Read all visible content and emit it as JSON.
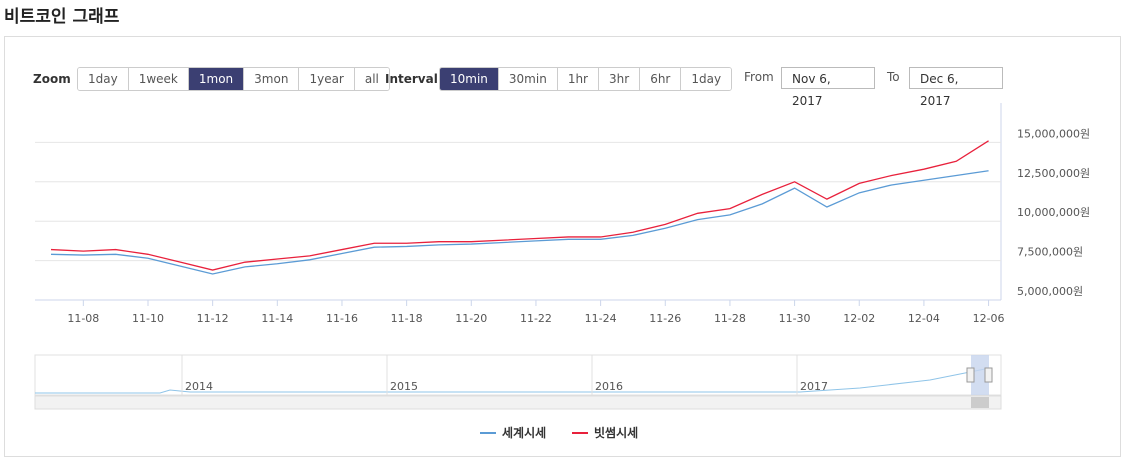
{
  "header": {
    "title": "비트코인 그래프"
  },
  "controls": {
    "zoom": {
      "label": "Zoom",
      "options": [
        "1day",
        "1week",
        "1mon",
        "3mon",
        "1year",
        "all"
      ],
      "active": 2
    },
    "interval": {
      "label": "Interval",
      "options": [
        "10min",
        "30min",
        "1hr",
        "3hr",
        "6hr",
        "1day"
      ],
      "active": 0
    },
    "from": {
      "label": "From",
      "value": "Nov 6, 2017"
    },
    "to": {
      "label": "To",
      "value": "Dec 6, 2017"
    }
  },
  "chart_data": {
    "type": "line",
    "categories": [
      null,
      "11-08",
      null,
      "11-10",
      null,
      "11-12",
      null,
      "11-14",
      null,
      "11-16",
      null,
      "11-18",
      null,
      "11-20",
      null,
      "11-22",
      null,
      "11-24",
      null,
      "11-26",
      null,
      "11-28",
      null,
      "11-30",
      null,
      "12-02",
      null,
      "12-04",
      null,
      "12-06"
    ],
    "series": [
      {
        "name": "세계시세",
        "color": "#5b9bd5",
        "values": [
          7900000,
          7850000,
          7900000,
          7650000,
          7150000,
          6650000,
          7100000,
          7300000,
          7550000,
          7950000,
          8350000,
          8400000,
          8500000,
          8550000,
          8650000,
          8750000,
          8850000,
          8850000,
          9100000,
          9550000,
          10100000,
          10400000,
          11100000,
          12100000,
          10900000,
          11800000,
          12300000,
          12600000,
          12900000,
          13200000
        ]
      },
      {
        "name": "빗썸시세",
        "color": "#e8213c",
        "values": [
          8200000,
          8100000,
          8200000,
          7900000,
          7400000,
          6900000,
          7400000,
          7600000,
          7800000,
          8200000,
          8600000,
          8600000,
          8700000,
          8700000,
          8800000,
          8900000,
          9000000,
          9000000,
          9300000,
          9800000,
          10500000,
          10800000,
          11700000,
          12500000,
          11400000,
          12400000,
          12900000,
          13300000,
          13800000,
          15100000
        ]
      }
    ],
    "ylim": [
      5000000,
      17500000
    ],
    "yticks": [
      {
        "value": 5000000,
        "label": "5,000,000원"
      },
      {
        "value": 7500000,
        "label": "7,500,000원"
      },
      {
        "value": 10000000,
        "label": "10,000,000원"
      },
      {
        "value": 12500000,
        "label": "12,500,000원"
      },
      {
        "value": 15000000,
        "label": "15,000,000원"
      }
    ],
    "grid": true,
    "navigator": {
      "labels": [
        "2014",
        "2015",
        "2016",
        "2017"
      ]
    }
  }
}
